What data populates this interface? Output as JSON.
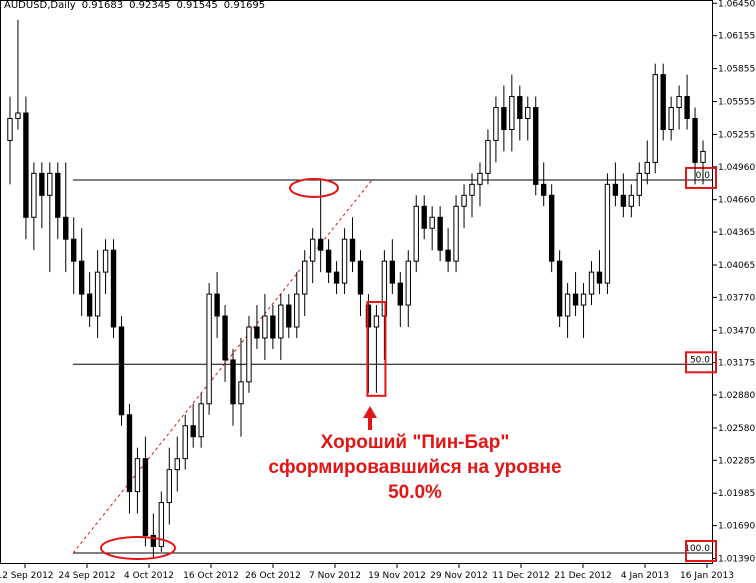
{
  "header": {
    "symbol": "AUDUSD,Daily",
    "open": "0.91683",
    "high": "0.92345",
    "low": "0.91545",
    "close": "0.91695"
  },
  "callout": {
    "line1": "Хороший \"Пин-Бар\"",
    "line2": "сформировавшийся на уровне",
    "line3": "50.0%"
  },
  "colors": {
    "bear": "#000000",
    "bull": "#ffffff",
    "highlight": "#e31515",
    "fib_diag": "#e31515"
  },
  "chart_data": {
    "type": "candlestick",
    "y_ticks": [
      "1.06450",
      "1.06155",
      "1.05855",
      "1.05555",
      "1.05255",
      "1.04960",
      "1.04660",
      "1.04365",
      "1.04065",
      "1.03770",
      "1.03470",
      "1.03175",
      "1.02880",
      "1.02580",
      "1.02285",
      "1.01985",
      "1.01690",
      "1.01390"
    ],
    "ylim": [
      1.0134,
      1.0648
    ],
    "x_ticks": [
      "12 Sep 2012",
      "24 Sep 2012",
      "4 Oct 2012",
      "16 Oct 2012",
      "26 Oct 2012",
      "7 Nov 2012",
      "19 Nov 2012",
      "29 Nov 2012",
      "11 Dec 2012",
      "21 Dec 2012",
      "4 Jan 2013",
      "16 Jan 2013"
    ],
    "fib_levels": [
      {
        "label": "0.0",
        "price": 1.0484
      },
      {
        "label": "50.0",
        "price": 1.0316
      },
      {
        "label": "100.0",
        "price": 1.0144
      }
    ],
    "candles": [
      [
        1.052,
        1.056,
        1.048,
        1.054
      ],
      [
        1.054,
        1.063,
        1.053,
        1.0545
      ],
      [
        1.0545,
        1.056,
        1.043,
        1.045
      ],
      [
        1.045,
        1.05,
        1.042,
        1.049
      ],
      [
        1.049,
        1.05,
        1.044,
        1.047
      ],
      [
        1.047,
        1.05,
        1.04,
        1.049
      ],
      [
        1.049,
        1.05,
        1.043,
        1.045
      ],
      [
        1.045,
        1.05,
        1.04,
        1.043
      ],
      [
        1.043,
        1.045,
        1.038,
        1.041
      ],
      [
        1.041,
        1.044,
        1.036,
        1.038
      ],
      [
        1.038,
        1.04,
        1.035,
        1.036
      ],
      [
        1.036,
        1.042,
        1.034,
        1.04
      ],
      [
        1.04,
        1.043,
        1.038,
        1.042
      ],
      [
        1.042,
        1.043,
        1.034,
        1.035
      ],
      [
        1.035,
        1.036,
        1.026,
        1.027
      ],
      [
        1.027,
        1.028,
        1.018,
        1.02
      ],
      [
        1.02,
        1.024,
        1.018,
        1.023
      ],
      [
        1.023,
        1.025,
        1.015,
        1.016
      ],
      [
        1.016,
        1.018,
        1.014,
        1.015
      ],
      [
        1.015,
        1.02,
        1.0145,
        1.019
      ],
      [
        1.019,
        1.024,
        1.017,
        1.022
      ],
      [
        1.022,
        1.025,
        1.02,
        1.023
      ],
      [
        1.023,
        1.027,
        1.022,
        1.026
      ],
      [
        1.026,
        1.028,
        1.024,
        1.025
      ],
      [
        1.025,
        1.029,
        1.024,
        1.028
      ],
      [
        1.028,
        1.039,
        1.027,
        1.038
      ],
      [
        1.038,
        1.04,
        1.034,
        1.036
      ],
      [
        1.036,
        1.037,
        1.03,
        1.032
      ],
      [
        1.032,
        1.033,
        1.026,
        1.028
      ],
      [
        1.028,
        1.034,
        1.025,
        1.03
      ],
      [
        1.03,
        1.036,
        1.029,
        1.035
      ],
      [
        1.035,
        1.037,
        1.033,
        1.034
      ],
      [
        1.034,
        1.038,
        1.032,
        1.036
      ],
      [
        1.036,
        1.037,
        1.033,
        1.034
      ],
      [
        1.034,
        1.038,
        1.032,
        1.037
      ],
      [
        1.037,
        1.038,
        1.034,
        1.035
      ],
      [
        1.035,
        1.04,
        1.034,
        1.038
      ],
      [
        1.038,
        1.042,
        1.036,
        1.041
      ],
      [
        1.041,
        1.044,
        1.039,
        1.043
      ],
      [
        1.043,
        1.0484,
        1.04,
        1.042
      ],
      [
        1.042,
        1.043,
        1.039,
        1.04
      ],
      [
        1.04,
        1.041,
        1.038,
        1.039
      ],
      [
        1.039,
        1.044,
        1.038,
        1.043
      ],
      [
        1.043,
        1.045,
        1.04,
        1.041
      ],
      [
        1.041,
        1.042,
        1.036,
        1.038
      ],
      [
        1.037,
        1.038,
        1.029,
        1.035
      ],
      [
        1.035,
        1.037,
        1.029,
        1.036
      ],
      [
        1.036,
        1.042,
        1.032,
        1.041
      ],
      [
        1.041,
        1.043,
        1.038,
        1.039
      ],
      [
        1.039,
        1.04,
        1.035,
        1.037
      ],
      [
        1.037,
        1.042,
        1.035,
        1.041
      ],
      [
        1.041,
        1.047,
        1.04,
        1.046
      ],
      [
        1.046,
        1.047,
        1.043,
        1.044
      ],
      [
        1.044,
        1.046,
        1.042,
        1.045
      ],
      [
        1.045,
        1.046,
        1.041,
        1.042
      ],
      [
        1.042,
        1.044,
        1.04,
        1.041
      ],
      [
        1.041,
        1.047,
        1.04,
        1.046
      ],
      [
        1.046,
        1.048,
        1.044,
        1.047
      ],
      [
        1.047,
        1.049,
        1.045,
        1.048
      ],
      [
        1.048,
        1.05,
        1.046,
        1.049
      ],
      [
        1.049,
        1.053,
        1.048,
        1.052
      ],
      [
        1.052,
        1.056,
        1.05,
        1.055
      ],
      [
        1.055,
        1.057,
        1.051,
        1.053
      ],
      [
        1.053,
        1.058,
        1.051,
        1.056
      ],
      [
        1.056,
        1.057,
        1.052,
        1.054
      ],
      [
        1.054,
        1.056,
        1.052,
        1.055
      ],
      [
        1.055,
        1.056,
        1.047,
        1.048
      ],
      [
        1.048,
        1.05,
        1.046,
        1.047
      ],
      [
        1.047,
        1.048,
        1.04,
        1.041
      ],
      [
        1.041,
        1.042,
        1.035,
        1.036
      ],
      [
        1.036,
        1.039,
        1.034,
        1.038
      ],
      [
        1.038,
        1.04,
        1.036,
        1.037
      ],
      [
        1.037,
        1.039,
        1.034,
        1.038
      ],
      [
        1.038,
        1.041,
        1.037,
        1.04
      ],
      [
        1.04,
        1.042,
        1.038,
        1.039
      ],
      [
        1.039,
        1.049,
        1.038,
        1.048
      ],
      [
        1.048,
        1.05,
        1.046,
        1.047
      ],
      [
        1.047,
        1.049,
        1.045,
        1.046
      ],
      [
        1.046,
        1.048,
        1.045,
        1.047
      ],
      [
        1.047,
        1.05,
        1.046,
        1.049
      ],
      [
        1.049,
        1.052,
        1.048,
        1.05
      ],
      [
        1.05,
        1.059,
        1.049,
        1.058
      ],
      [
        1.058,
        1.059,
        1.052,
        1.053
      ],
      [
        1.053,
        1.056,
        1.052,
        1.055
      ],
      [
        1.055,
        1.057,
        1.053,
        1.056
      ],
      [
        1.056,
        1.058,
        1.053,
        1.054
      ],
      [
        1.054,
        1.055,
        1.048,
        1.05
      ],
      [
        1.05,
        1.052,
        1.048,
        1.051
      ]
    ],
    "pin_bar_index": 46
  }
}
